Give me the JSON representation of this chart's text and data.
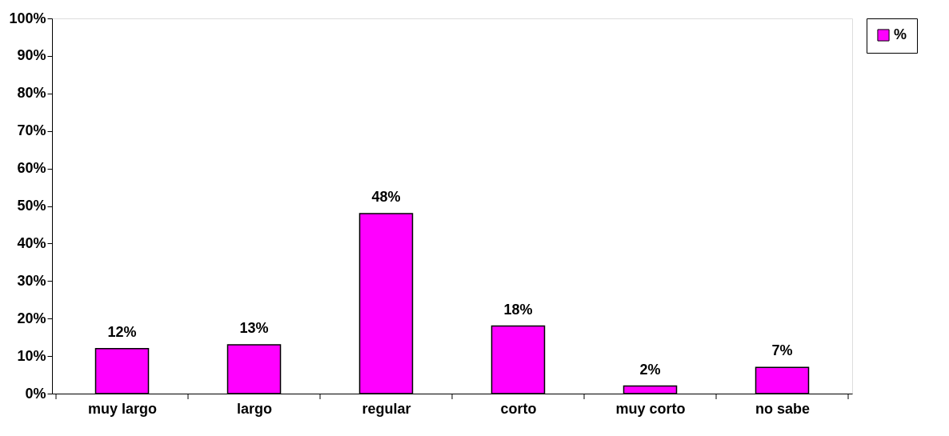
{
  "chart_data": {
    "type": "bar",
    "categories": [
      "muy largo",
      "largo",
      "regular",
      "corto",
      "muy corto",
      "no sabe"
    ],
    "series": [
      {
        "name": "%",
        "color": "#ff00ff",
        "values": [
          12,
          13,
          48,
          18,
          2,
          7
        ],
        "value_labels": [
          "12%",
          "13%",
          "48%",
          "18%",
          "2%",
          "7%"
        ]
      }
    ],
    "ylim": [
      0,
      100
    ],
    "yticks": [
      {
        "value": 0,
        "label": "0%"
      },
      {
        "value": 10,
        "label": "10%"
      },
      {
        "value": 20,
        "label": "20%"
      },
      {
        "value": 30,
        "label": "30%"
      },
      {
        "value": 40,
        "label": "40%"
      },
      {
        "value": 50,
        "label": "50%"
      },
      {
        "value": 60,
        "label": "60%"
      },
      {
        "value": 70,
        "label": "70%"
      },
      {
        "value": 80,
        "label": "80%"
      },
      {
        "value": 90,
        "label": "90%"
      },
      {
        "value": 100,
        "label": "100%"
      }
    ],
    "grid": false,
    "legend": "right"
  }
}
